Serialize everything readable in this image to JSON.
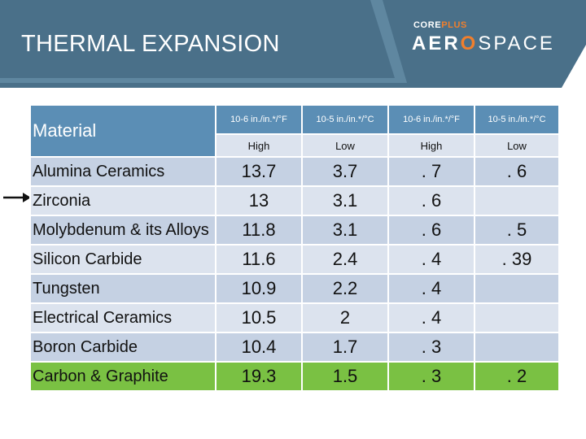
{
  "header": {
    "title": "THERMAL EXPANSION",
    "logo_top_a": "CORE",
    "logo_top_b": "PLUS",
    "logo_main_a": "AER",
    "logo_main_b": "O",
    "logo_main_c": "SPACE"
  },
  "colors": {
    "header_bg": "#4a7089",
    "header_band": "#5f87a0",
    "table_header": "#5b8eb5",
    "row_light": "#dce3ee",
    "row_dark": "#c5d1e3",
    "row_highlight": "#7ac143",
    "logo_accent": "#f07f2d"
  },
  "table": {
    "material_header": "Material",
    "columns": [
      {
        "unit": "10-6 in./in.*/°F",
        "level": "High"
      },
      {
        "unit": "10-5 in./in.*/°C",
        "level": "Low"
      },
      {
        "unit": "10-6 in./in.*/°F",
        "level": "High"
      },
      {
        "unit": "10-5 in./in.*/°C",
        "level": "Low"
      }
    ],
    "rows": [
      {
        "material": "Alumina Ceramics",
        "v1": "13.7",
        "v2": "3.7",
        "v3": ". 7",
        "v4": ". 6"
      },
      {
        "material": "Zirconia",
        "v1": "13",
        "v2": "3.1",
        "v3": ". 6",
        "v4": ""
      },
      {
        "material": "Molybdenum & its Alloys",
        "v1": "11.8",
        "v2": "3.1",
        "v3": ". 6",
        "v4": ". 5"
      },
      {
        "material": "Silicon Carbide",
        "v1": "11.6",
        "v2": "2.4",
        "v3": ". 4",
        "v4": ". 39"
      },
      {
        "material": "Tungsten",
        "v1": "10.9",
        "v2": "2.2",
        "v3": ". 4",
        "v4": ""
      },
      {
        "material": "Electrical Ceramics",
        "v1": "10.5",
        "v2": "2",
        "v3": ". 4",
        "v4": ""
      },
      {
        "material": "Boron Carbide",
        "v1": "10.4",
        "v2": "1.7",
        "v3": ". 3",
        "v4": ""
      },
      {
        "material": "Carbon & Graphite",
        "v1": "19.3",
        "v2": "1.5",
        "v3": ". 3",
        "v4": ". 2"
      }
    ]
  }
}
